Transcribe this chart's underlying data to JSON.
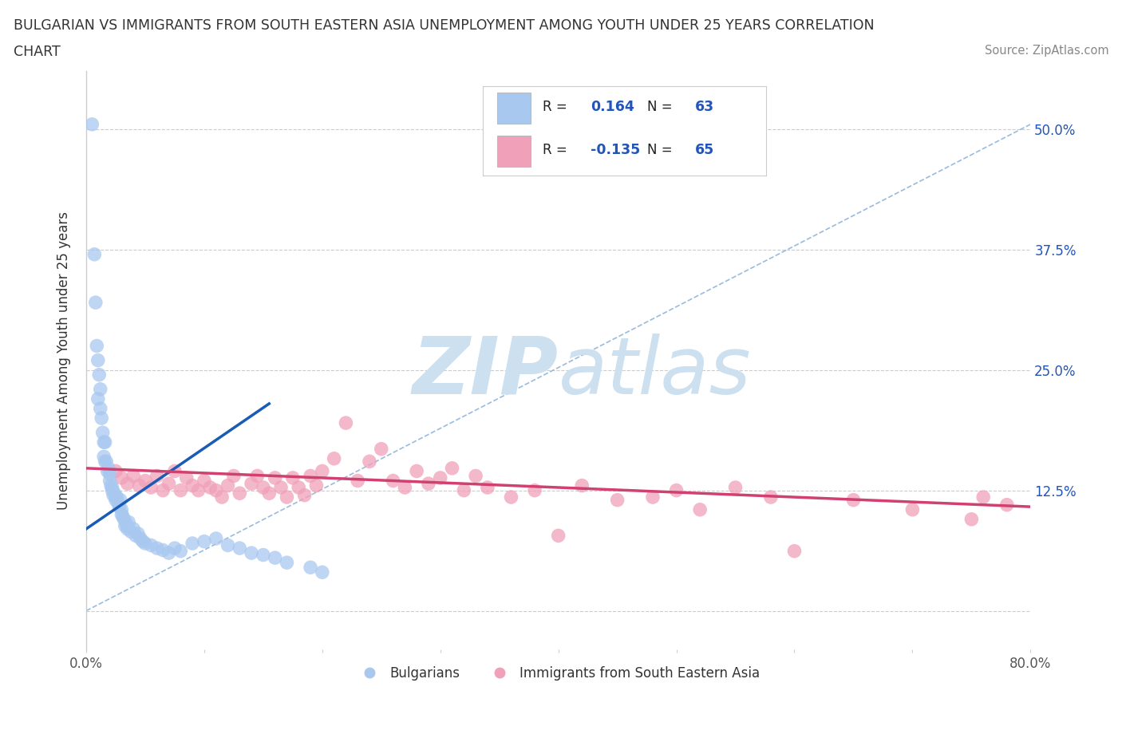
{
  "title_line1": "BULGARIAN VS IMMIGRANTS FROM SOUTH EASTERN ASIA UNEMPLOYMENT AMONG YOUTH UNDER 25 YEARS CORRELATION",
  "title_line2": "CHART",
  "source_text": "Source: ZipAtlas.com",
  "ylabel": "Unemployment Among Youth under 25 years",
  "xlim": [
    0.0,
    0.8
  ],
  "ylim": [
    -0.04,
    0.56
  ],
  "xtick_positions": [
    0.0,
    0.1,
    0.2,
    0.3,
    0.4,
    0.5,
    0.6,
    0.7,
    0.8
  ],
  "xticklabels": [
    "0.0%",
    "",
    "",
    "",
    "",
    "",
    "",
    "",
    "80.0%"
  ],
  "ytick_positions": [
    0.0,
    0.125,
    0.25,
    0.375,
    0.5
  ],
  "ytick_labels_right": [
    "",
    "12.5%",
    "25.0%",
    "37.5%",
    "50.0%"
  ],
  "r_blue": 0.164,
  "n_blue": 63,
  "r_pink": -0.135,
  "n_pink": 65,
  "blue_color": "#a8c8f0",
  "blue_line_color": "#1a5cb5",
  "pink_color": "#f0a0b8",
  "pink_line_color": "#d04070",
  "diag_color": "#99bbdd",
  "watermark_color": "#cce0f0",
  "legend_r_color": "#2255bb",
  "legend_n_color": "#2255bb",
  "background_color": "#ffffff",
  "grid_color": "#cccccc",
  "ytick_label_color": "#2255bb",
  "xtick_label_color": "#555555",
  "blue_scatter_x": [
    0.005,
    0.007,
    0.008,
    0.009,
    0.01,
    0.01,
    0.011,
    0.012,
    0.012,
    0.013,
    0.014,
    0.015,
    0.015,
    0.016,
    0.016,
    0.017,
    0.018,
    0.019,
    0.02,
    0.02,
    0.021,
    0.022,
    0.022,
    0.023,
    0.024,
    0.025,
    0.025,
    0.026,
    0.027,
    0.028,
    0.029,
    0.03,
    0.03,
    0.031,
    0.032,
    0.033,
    0.034,
    0.035,
    0.036,
    0.038,
    0.04,
    0.042,
    0.044,
    0.046,
    0.048,
    0.05,
    0.055,
    0.06,
    0.065,
    0.07,
    0.075,
    0.08,
    0.09,
    0.1,
    0.11,
    0.12,
    0.13,
    0.14,
    0.15,
    0.16,
    0.17,
    0.19,
    0.2
  ],
  "blue_scatter_y": [
    0.505,
    0.37,
    0.32,
    0.275,
    0.26,
    0.22,
    0.245,
    0.23,
    0.21,
    0.2,
    0.185,
    0.175,
    0.16,
    0.175,
    0.155,
    0.155,
    0.145,
    0.148,
    0.142,
    0.135,
    0.13,
    0.128,
    0.125,
    0.12,
    0.122,
    0.118,
    0.115,
    0.118,
    0.112,
    0.108,
    0.115,
    0.105,
    0.1,
    0.098,
    0.095,
    0.088,
    0.09,
    0.085,
    0.092,
    0.082,
    0.085,
    0.078,
    0.08,
    0.075,
    0.072,
    0.07,
    0.068,
    0.065,
    0.063,
    0.06,
    0.065,
    0.062,
    0.07,
    0.072,
    0.075,
    0.068,
    0.065,
    0.06,
    0.058,
    0.055,
    0.05,
    0.045,
    0.04
  ],
  "pink_scatter_x": [
    0.025,
    0.03,
    0.035,
    0.04,
    0.045,
    0.05,
    0.055,
    0.06,
    0.065,
    0.07,
    0.075,
    0.08,
    0.085,
    0.09,
    0.095,
    0.1,
    0.105,
    0.11,
    0.115,
    0.12,
    0.125,
    0.13,
    0.14,
    0.145,
    0.15,
    0.155,
    0.16,
    0.165,
    0.17,
    0.175,
    0.18,
    0.185,
    0.19,
    0.195,
    0.2,
    0.21,
    0.22,
    0.23,
    0.24,
    0.25,
    0.26,
    0.27,
    0.28,
    0.29,
    0.3,
    0.31,
    0.32,
    0.33,
    0.34,
    0.36,
    0.38,
    0.4,
    0.42,
    0.45,
    0.48,
    0.5,
    0.52,
    0.55,
    0.58,
    0.6,
    0.65,
    0.7,
    0.75,
    0.76,
    0.78
  ],
  "pink_scatter_y": [
    0.145,
    0.138,
    0.132,
    0.14,
    0.13,
    0.135,
    0.128,
    0.14,
    0.125,
    0.132,
    0.145,
    0.125,
    0.138,
    0.13,
    0.125,
    0.135,
    0.128,
    0.125,
    0.118,
    0.13,
    0.14,
    0.122,
    0.132,
    0.14,
    0.128,
    0.122,
    0.138,
    0.128,
    0.118,
    0.138,
    0.128,
    0.12,
    0.14,
    0.13,
    0.145,
    0.158,
    0.195,
    0.135,
    0.155,
    0.168,
    0.135,
    0.128,
    0.145,
    0.132,
    0.138,
    0.148,
    0.125,
    0.14,
    0.128,
    0.118,
    0.125,
    0.078,
    0.13,
    0.115,
    0.118,
    0.125,
    0.105,
    0.128,
    0.118,
    0.062,
    0.115,
    0.105,
    0.095,
    0.118,
    0.11
  ],
  "blue_line_x": [
    0.0,
    0.155
  ],
  "blue_line_y_start": 0.085,
  "blue_line_y_end": 0.215,
  "pink_line_x": [
    0.0,
    0.8
  ],
  "pink_line_y_start": 0.148,
  "pink_line_y_end": 0.108,
  "diag_line_x": [
    0.0,
    0.8
  ],
  "diag_line_y": [
    0.0,
    0.505
  ]
}
